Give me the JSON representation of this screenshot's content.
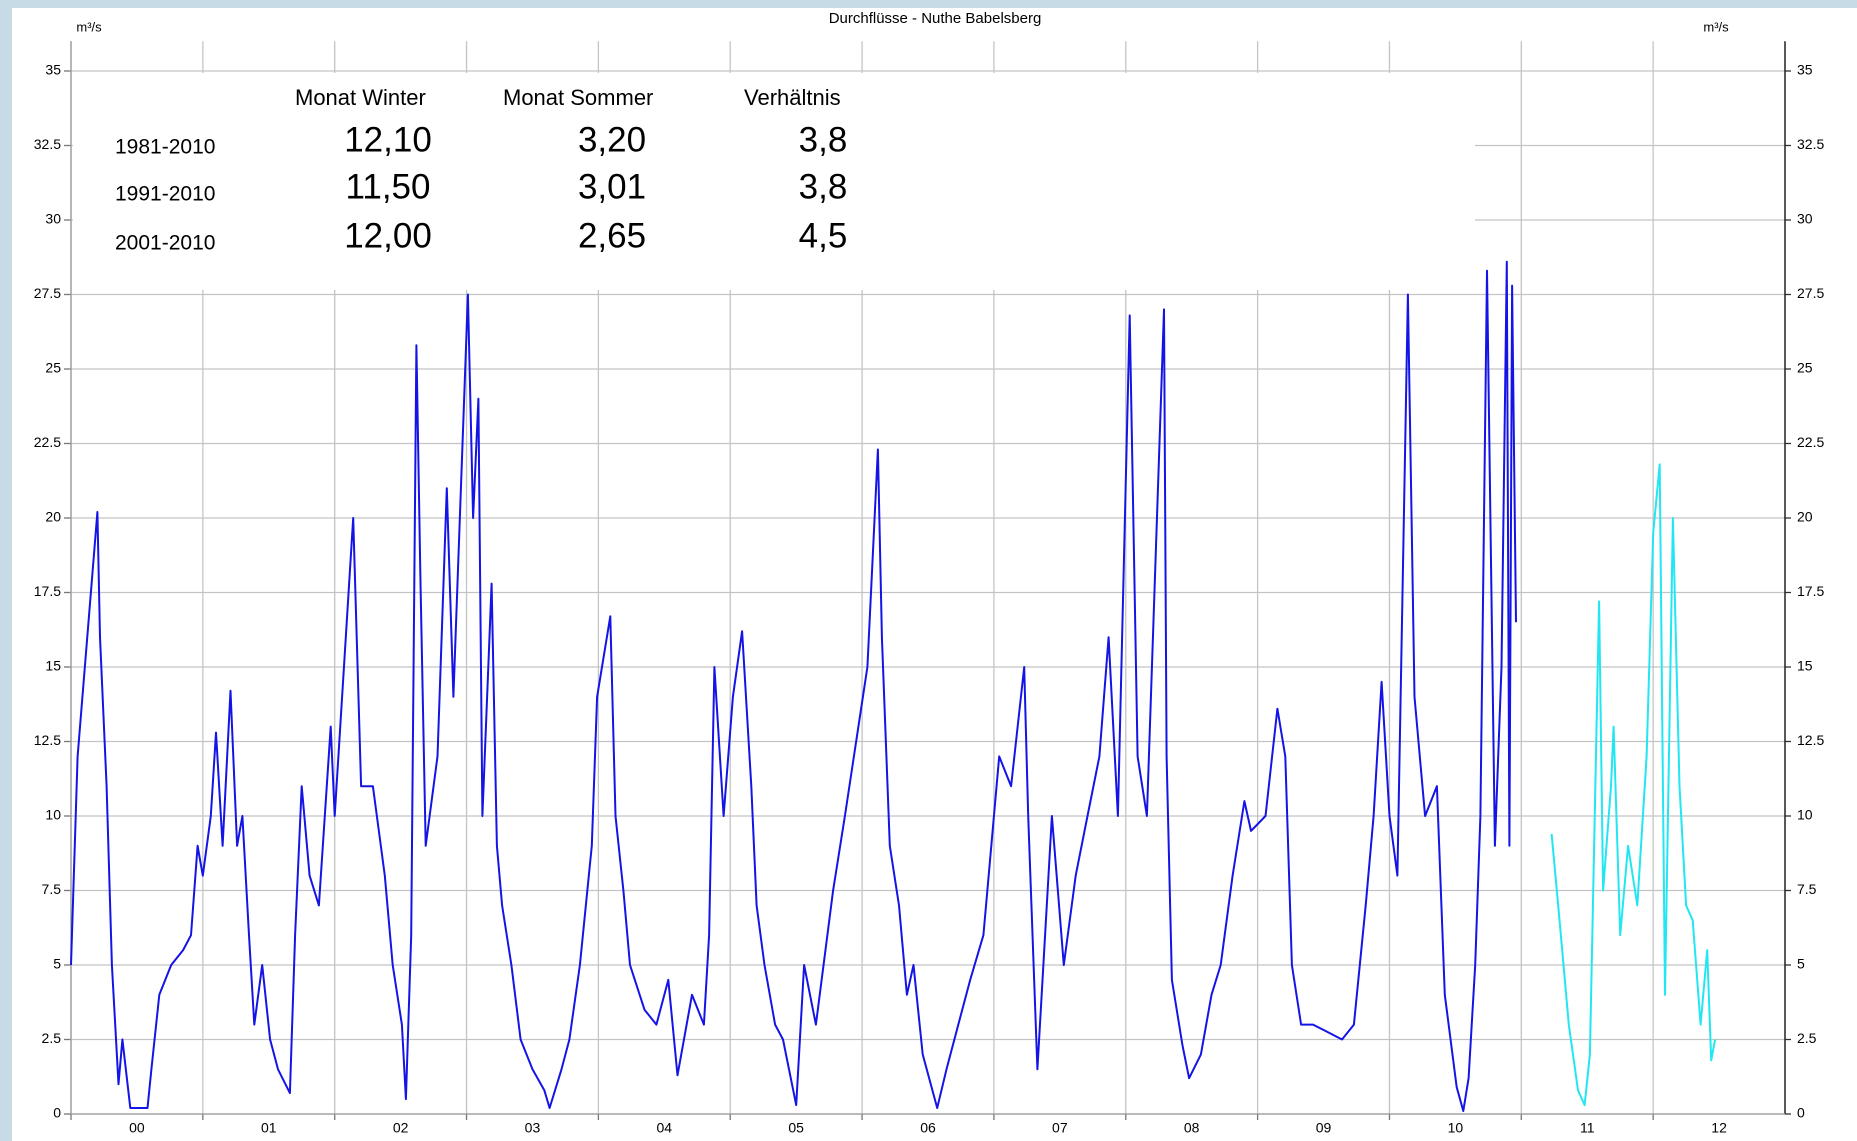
{
  "chart_data": {
    "type": "line",
    "title": "Durchflüsse - Nuthe Babelsberg",
    "ylabel": "m³/s",
    "y2label": "m³/s",
    "xlim": [
      2000,
      2013
    ],
    "xticks": [
      {
        "value": 2000,
        "label": "00"
      },
      {
        "value": 2001,
        "label": "01"
      },
      {
        "value": 2002,
        "label": "02"
      },
      {
        "value": 2003,
        "label": "03"
      },
      {
        "value": 2004,
        "label": "04"
      },
      {
        "value": 2005,
        "label": "05"
      },
      {
        "value": 2006,
        "label": "06"
      },
      {
        "value": 2007,
        "label": "07"
      },
      {
        "value": 2008,
        "label": "08"
      },
      {
        "value": 2009,
        "label": "09"
      },
      {
        "value": 2010,
        "label": "10"
      },
      {
        "value": 2011,
        "label": "11"
      },
      {
        "value": 2012,
        "label": "12"
      }
    ],
    "ylim": [
      0,
      36
    ],
    "yticks": [
      0,
      2.5,
      5,
      7.5,
      10,
      12.5,
      15,
      17.5,
      20,
      22.5,
      25,
      27.5,
      30,
      32.5,
      35
    ],
    "y2lim": [
      0,
      36
    ],
    "y2ticks": [
      0,
      2.5,
      5,
      7.5,
      10,
      12.5,
      15,
      17.5,
      20,
      22.5,
      25,
      27.5,
      30,
      32.5,
      35
    ],
    "grid": true,
    "annotation_table": {
      "columns": [
        "Monat Winter",
        "Monat Sommer",
        "Verhältnis"
      ],
      "rows": [
        [
          "1981-2010",
          "12,10",
          "3,20",
          "3,8"
        ],
        [
          "1991-2010",
          "11,50",
          "3,01",
          "3,8"
        ],
        [
          "2001-2010",
          "12,00",
          "2,65",
          "4,5"
        ]
      ]
    },
    "series": [
      {
        "color": "#1414e6",
        "x": [
          2000.0,
          2000.05,
          2000.2,
          2000.22,
          2000.27,
          2000.31,
          2000.36,
          2000.39,
          2000.45,
          2000.58,
          2000.61,
          2000.67,
          2000.76,
          2000.85,
          2000.91,
          2000.96,
          2001.0,
          2001.06,
          2001.1,
          2001.15,
          2001.21,
          2001.26,
          2001.3,
          2001.35,
          2001.39,
          2001.45,
          2001.51,
          2001.57,
          2001.66,
          2001.7,
          2001.75,
          2001.81,
          2001.88,
          2001.97,
          2002.0,
          2002.14,
          2002.2,
          2002.29,
          2002.38,
          2002.44,
          2002.51,
          2002.54,
          2002.58,
          2002.62,
          2002.65,
          2002.69,
          2002.78,
          2002.85,
          2002.9,
          2003.01,
          2003.05,
          2003.09,
          2003.12,
          2003.19,
          2003.23,
          2003.27,
          2003.34,
          2003.41,
          2003.5,
          2003.59,
          2003.63,
          2003.72,
          2003.78,
          2003.86,
          2003.95,
          2003.99,
          2004.09,
          2004.13,
          2004.19,
          2004.24,
          2004.35,
          2004.44,
          2004.53,
          2004.6,
          2004.71,
          2004.8,
          2004.84,
          2004.88,
          2004.95,
          2005.02,
          2005.09,
          2005.16,
          2005.2,
          2005.26,
          2005.34,
          2005.4,
          2005.5,
          2005.56,
          2005.65,
          2005.78,
          2005.87,
          2006.04,
          2006.12,
          2006.15,
          2006.21,
          2006.28,
          2006.34,
          2006.39,
          2006.46,
          2006.57,
          2006.64,
          2006.73,
          2006.82,
          2006.92,
          2007.04,
          2007.13,
          2007.23,
          2007.26,
          2007.33,
          2007.44,
          2007.53,
          2007.62,
          2007.71,
          2007.8,
          2007.87,
          2007.94,
          2008.03,
          2008.09,
          2008.16,
          2008.29,
          2008.31,
          2008.35,
          2008.43,
          2008.48,
          2008.57,
          2008.65,
          2008.72,
          2008.81,
          2008.9,
          2008.95,
          2009.06,
          2009.15,
          2009.21,
          2009.26,
          2009.33,
          2009.42,
          2009.51,
          2009.64,
          2009.73,
          2009.82,
          2009.88,
          2009.94,
          2010.0,
          2010.06,
          2010.14,
          2010.19,
          2010.27,
          2010.36,
          2010.42,
          2010.51,
          2010.56,
          2010.6,
          2010.65,
          2010.69,
          2010.74,
          2010.8,
          2010.85,
          2010.89,
          2010.91,
          2010.93,
          2010.96
        ],
        "values": [
          5,
          12,
          20.2,
          16,
          11,
          5,
          1,
          2.5,
          0.2,
          0.2,
          1.5,
          4,
          5,
          5.5,
          6,
          9,
          8,
          10,
          12.8,
          9,
          14.2,
          9,
          10,
          6,
          3,
          5,
          2.5,
          1.5,
          0.7,
          6,
          11,
          8,
          7,
          13,
          10,
          20,
          11,
          11,
          8,
          5,
          3,
          0.5,
          6,
          25.8,
          18,
          9,
          12,
          21,
          14,
          27.5,
          20,
          24,
          10,
          17.8,
          9,
          7,
          5,
          2.5,
          1.5,
          0.8,
          0.2,
          1.5,
          2.5,
          5,
          9,
          14,
          16.7,
          10,
          7.5,
          5,
          3.5,
          3,
          4.5,
          1.3,
          4,
          3,
          6,
          15,
          10,
          14,
          16.2,
          11,
          7,
          5,
          3,
          2.5,
          0.3,
          5,
          3,
          7.5,
          10,
          15,
          22.3,
          16,
          9,
          7,
          4,
          5,
          2,
          0.2,
          1.5,
          3,
          4.5,
          6,
          12,
          11,
          15,
          10,
          1.5,
          10,
          5,
          8,
          10,
          12,
          16,
          10,
          26.8,
          12,
          10,
          27,
          12,
          4.5,
          2.3,
          1.2,
          2,
          4,
          5,
          8,
          10.5,
          9.5,
          10,
          13.6,
          12,
          5,
          3,
          3,
          2.8,
          2.5,
          3,
          7,
          10,
          14.5,
          10,
          8,
          27.5,
          14,
          10,
          11,
          4,
          0.9,
          0.1,
          1.2,
          5,
          10,
          28.3,
          9,
          15,
          28.6,
          9,
          27.8,
          16.5
        ]
      },
      {
        "color": "#22e6f2",
        "x": [
          2011.23,
          2011.28,
          2011.36,
          2011.43,
          2011.48,
          2011.52,
          2011.59,
          2011.62,
          2011.68,
          2011.7,
          2011.75,
          2011.81,
          2011.88,
          2011.95,
          2012.0,
          2012.05,
          2012.09,
          2012.15,
          2012.2,
          2012.25,
          2012.3,
          2012.36,
          2012.41,
          2012.44,
          2012.47
        ],
        "values": [
          9.4,
          7,
          3,
          0.8,
          0.3,
          2,
          17.2,
          7.5,
          11,
          13,
          6,
          9,
          7,
          12,
          19.5,
          21.8,
          4,
          20,
          11,
          7,
          6.5,
          3,
          5.5,
          1.8,
          2.5
        ]
      }
    ]
  }
}
